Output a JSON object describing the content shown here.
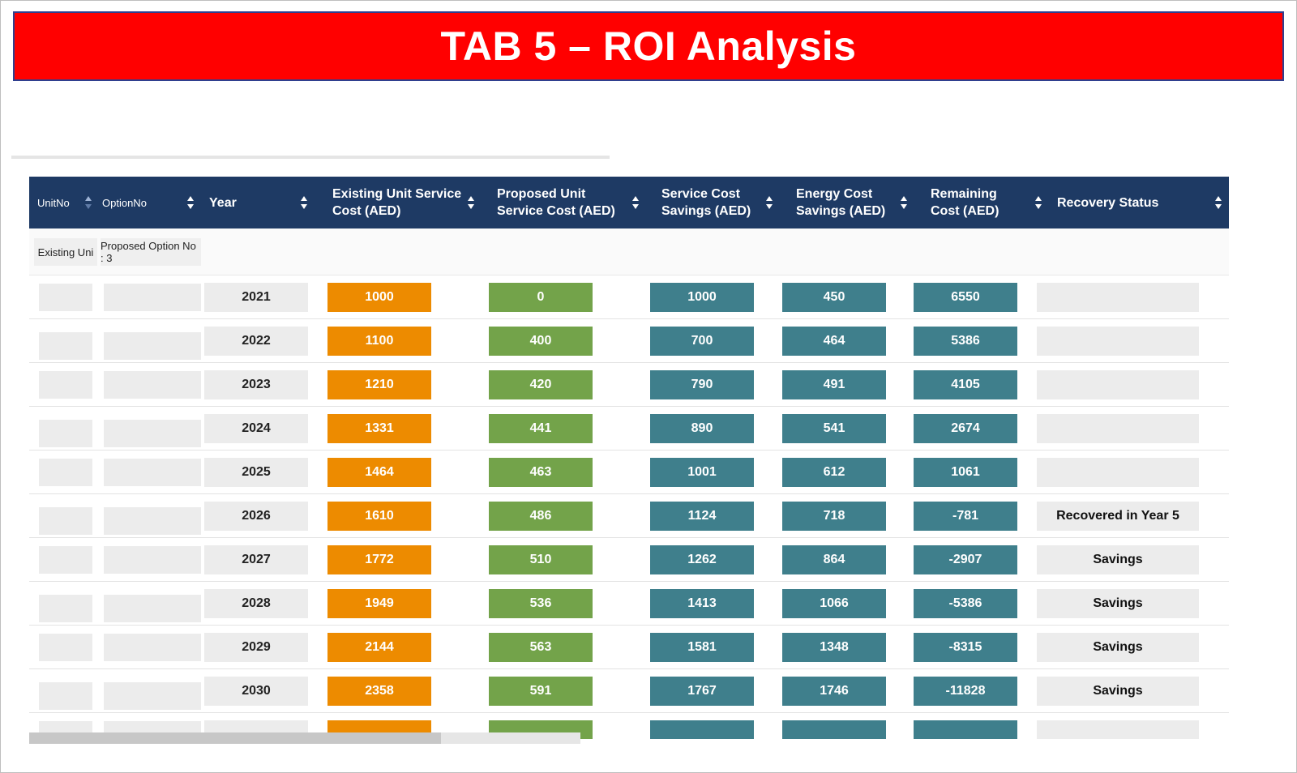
{
  "title": "TAB 5 – ROI Analysis",
  "colors": {
    "banner": "#ff0000",
    "header": "#1e3a64",
    "existing": "#ed8b00",
    "proposed": "#73a34a",
    "teal": "#3f7f8c",
    "neutral": "#ececec"
  },
  "frozen_columns": {
    "headers": [
      "UnitNo",
      "OptionNo"
    ],
    "filters": [
      "Existing Uni",
      "Proposed Option No : 3"
    ]
  },
  "columns": [
    "Year",
    "Existing Unit Service Cost (AED)",
    "Proposed Unit Service Cost (AED)",
    "Service Cost Savings (AED)",
    "Energy Cost Savings (AED)",
    "Remaining Cost (AED)",
    "Recovery Status"
  ],
  "rows": [
    {
      "year": "2021",
      "existing": "1000",
      "proposed": "0",
      "service_savings": "1000",
      "energy_savings": "450",
      "remaining": "6550",
      "status": ""
    },
    {
      "year": "2022",
      "existing": "1100",
      "proposed": "400",
      "service_savings": "700",
      "energy_savings": "464",
      "remaining": "5386",
      "status": ""
    },
    {
      "year": "2023",
      "existing": "1210",
      "proposed": "420",
      "service_savings": "790",
      "energy_savings": "491",
      "remaining": "4105",
      "status": ""
    },
    {
      "year": "2024",
      "existing": "1331",
      "proposed": "441",
      "service_savings": "890",
      "energy_savings": "541",
      "remaining": "2674",
      "status": ""
    },
    {
      "year": "2025",
      "existing": "1464",
      "proposed": "463",
      "service_savings": "1001",
      "energy_savings": "612",
      "remaining": "1061",
      "status": ""
    },
    {
      "year": "2026",
      "existing": "1610",
      "proposed": "486",
      "service_savings": "1124",
      "energy_savings": "718",
      "remaining": "-781",
      "status": "Recovered in Year 5"
    },
    {
      "year": "2027",
      "existing": "1772",
      "proposed": "510",
      "service_savings": "1262",
      "energy_savings": "864",
      "remaining": "-2907",
      "status": "Savings"
    },
    {
      "year": "2028",
      "existing": "1949",
      "proposed": "536",
      "service_savings": "1413",
      "energy_savings": "1066",
      "remaining": "-5386",
      "status": "Savings"
    },
    {
      "year": "2029",
      "existing": "2144",
      "proposed": "563",
      "service_savings": "1581",
      "energy_savings": "1348",
      "remaining": "-8315",
      "status": "Savings"
    },
    {
      "year": "2030",
      "existing": "2358",
      "proposed": "591",
      "service_savings": "1767",
      "energy_savings": "1746",
      "remaining": "-11828",
      "status": "Savings"
    }
  ]
}
